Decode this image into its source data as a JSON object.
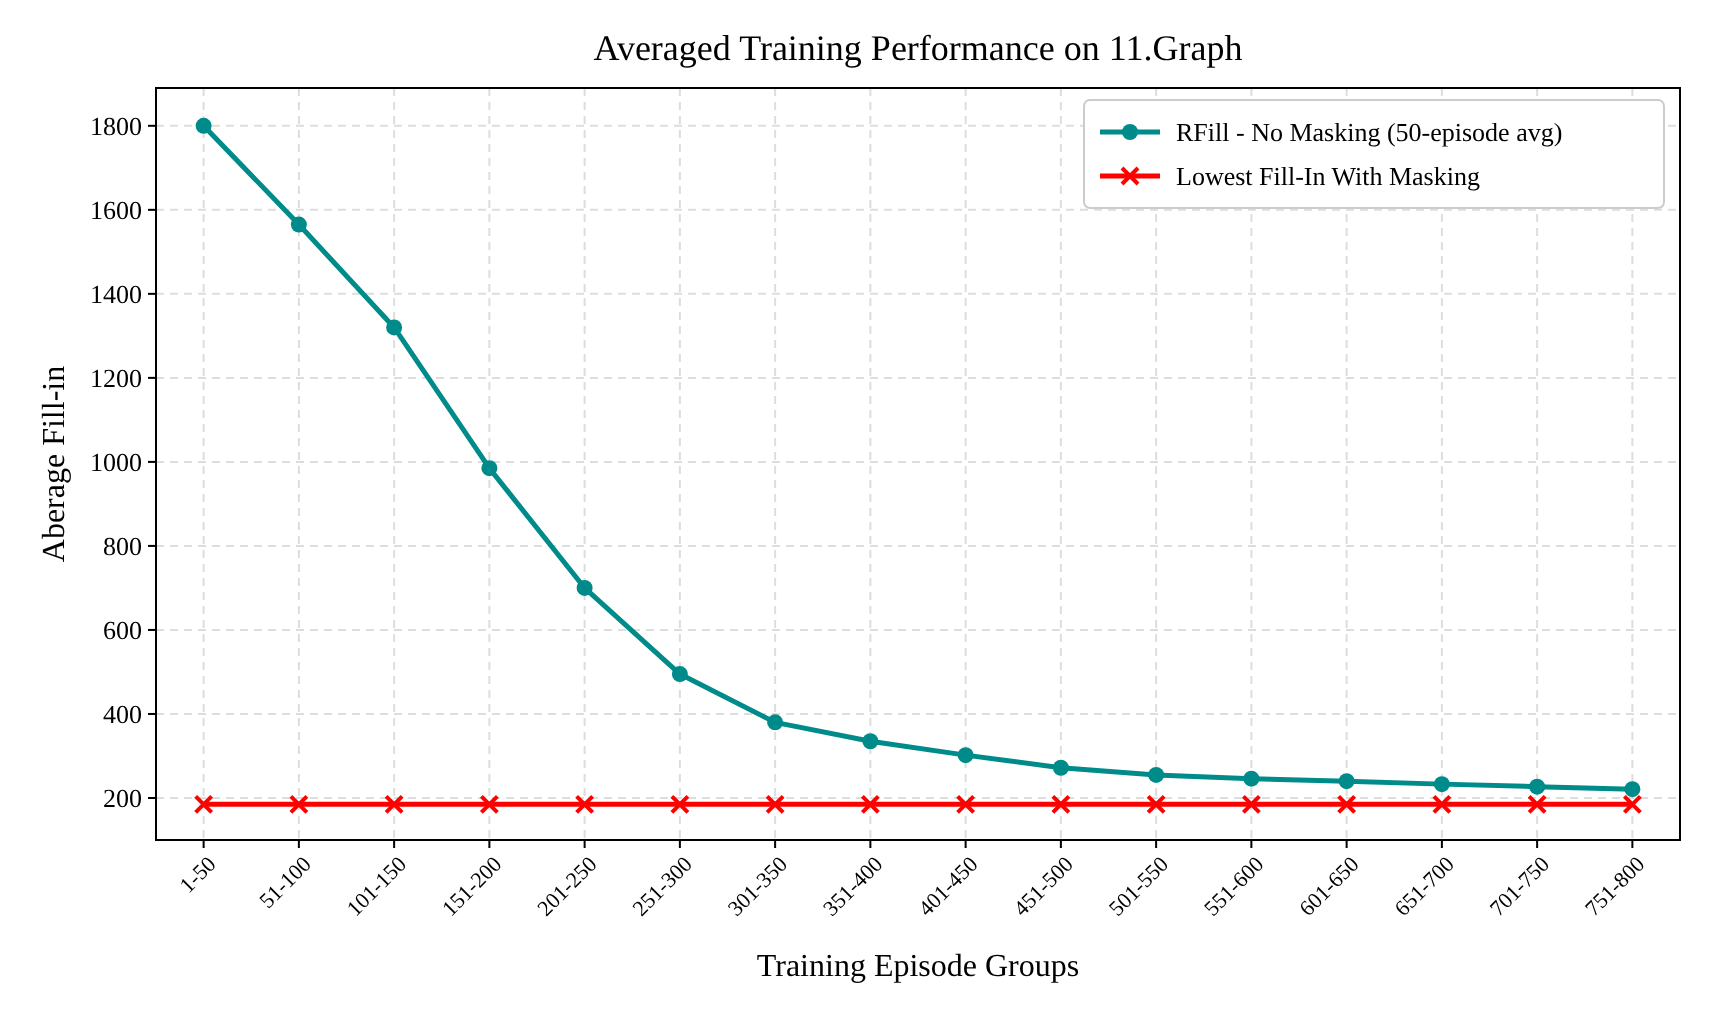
{
  "chart_data": {
    "type": "line",
    "title": "Averaged Training Performance on 11.Graph",
    "xlabel": "Training Episode Groups",
    "ylabel": "Aberage Fill-in",
    "categories": [
      "1-50",
      "51-100",
      "101-150",
      "151-200",
      "201-250",
      "251-300",
      "301-350",
      "351-400",
      "401-450",
      "451-500",
      "501-550",
      "551-600",
      "601-650",
      "651-700",
      "701-750",
      "751-800"
    ],
    "series": [
      {
        "name": "RFill - No Masking (50-episode avg)",
        "color": "#008b8b",
        "marker": "circle",
        "values": [
          1800,
          1565,
          1320,
          985,
          700,
          495,
          380,
          335,
          302,
          272,
          255,
          246,
          240,
          233,
          227,
          221
        ]
      },
      {
        "name": "Lowest Fill-In With Masking",
        "color": "#ff0000",
        "marker": "cross",
        "values": [
          185,
          185,
          185,
          185,
          185,
          185,
          185,
          185,
          185,
          185,
          185,
          185,
          185,
          185,
          185,
          185
        ]
      }
    ],
    "ylim": [
      100,
      1890
    ],
    "yticks": [
      200,
      400,
      600,
      800,
      1000,
      1200,
      1400,
      1600,
      1800
    ],
    "grid": true,
    "legend": "top right",
    "line_style": "solid"
  }
}
